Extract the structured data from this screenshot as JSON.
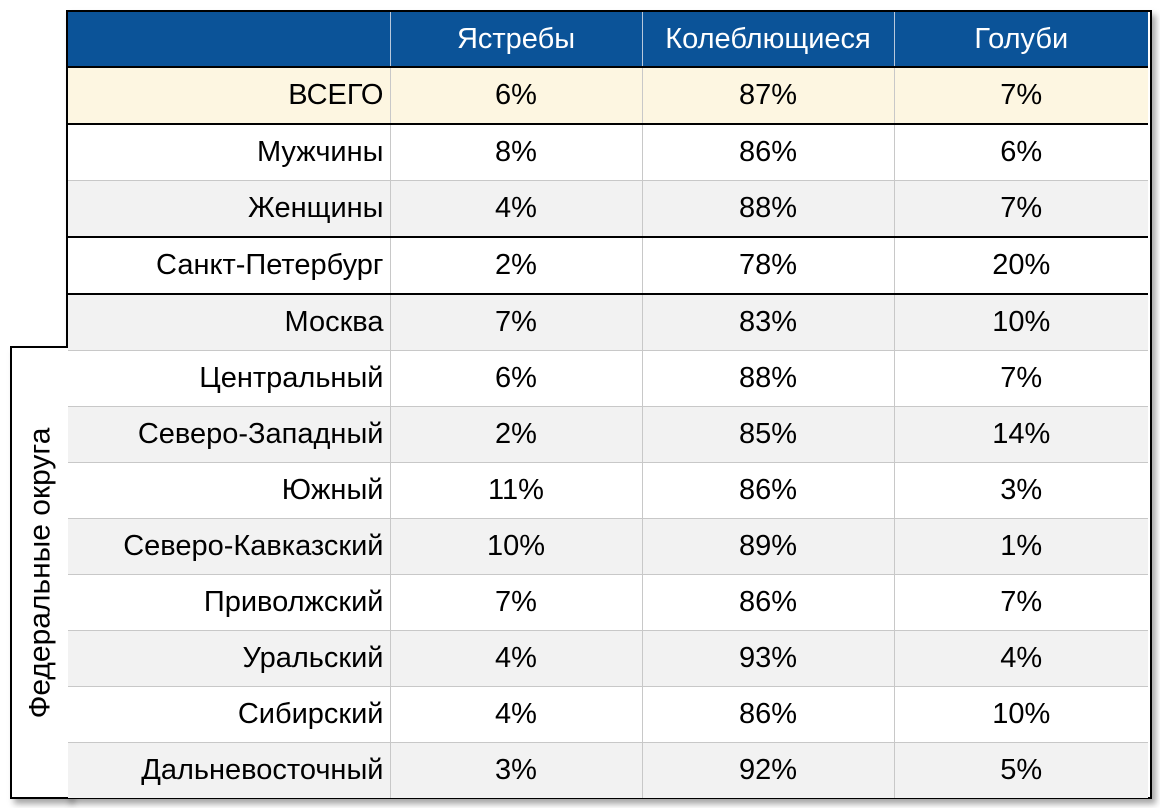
{
  "chart_data": {
    "type": "table",
    "columns": [
      "",
      "Ястребы",
      "Колеблющиеся",
      "Голуби"
    ],
    "group_label": "Федеральные округа",
    "rows": [
      {
        "label": "ВСЕГО",
        "values": [
          "6%",
          "87%",
          "7%"
        ]
      },
      {
        "label": "Мужчины",
        "values": [
          "8%",
          "86%",
          "6%"
        ]
      },
      {
        "label": "Женщины",
        "values": [
          "4%",
          "88%",
          "7%"
        ]
      },
      {
        "label": "Санкт-Петербург",
        "values": [
          "2%",
          "78%",
          "20%"
        ]
      },
      {
        "label": "Москва",
        "values": [
          "7%",
          "83%",
          "10%"
        ]
      },
      {
        "label": "Центральный",
        "values": [
          "6%",
          "88%",
          "7%"
        ]
      },
      {
        "label": "Северо-Западный",
        "values": [
          "2%",
          "85%",
          "14%"
        ]
      },
      {
        "label": "Южный",
        "values": [
          "11%",
          "86%",
          "3%"
        ]
      },
      {
        "label": "Северо-Кавказский",
        "values": [
          "10%",
          "89%",
          "1%"
        ]
      },
      {
        "label": "Приволжский",
        "values": [
          "7%",
          "86%",
          "7%"
        ]
      },
      {
        "label": "Уральский",
        "values": [
          "4%",
          "93%",
          "4%"
        ]
      },
      {
        "label": "Сибирский",
        "values": [
          "4%",
          "86%",
          "10%"
        ]
      },
      {
        "label": "Дальневосточный",
        "values": [
          "3%",
          "92%",
          "5%"
        ]
      }
    ]
  },
  "colors": {
    "header_bg": "#0b5398",
    "total_row_bg": "#fdf6e1",
    "alt_row_bg": "#f2f2f2"
  }
}
